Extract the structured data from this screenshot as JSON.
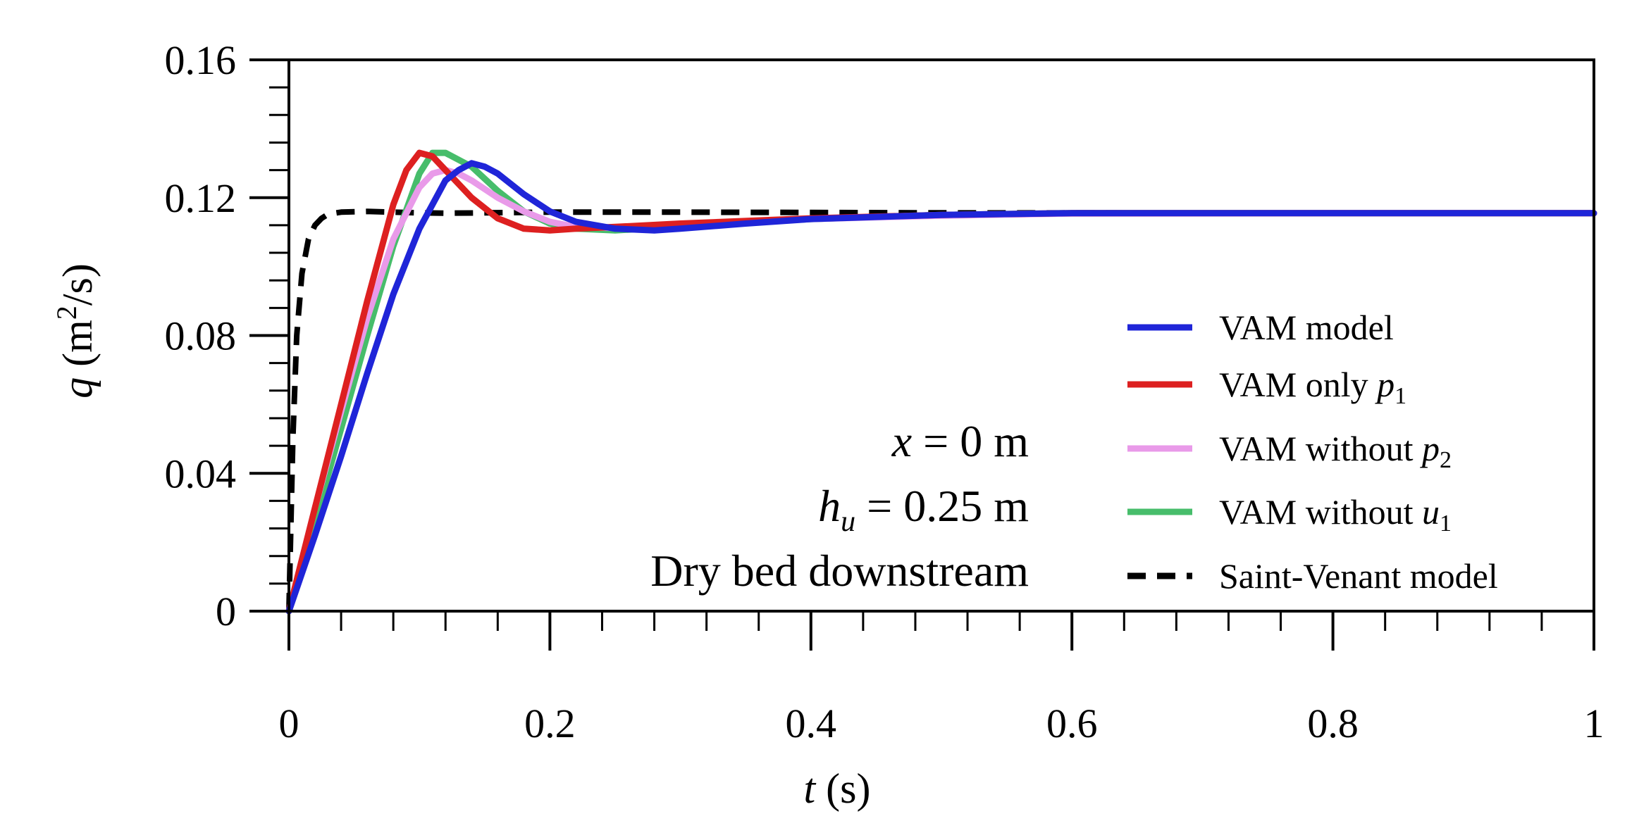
{
  "chart_data": {
    "type": "line",
    "xlabel": {
      "var": "t",
      "unit": "(s)"
    },
    "ylabel": {
      "var": "q",
      "unit_pre": "(m",
      "unit_sup": "2",
      "unit_post": "/s)"
    },
    "xlim": [
      0,
      1
    ],
    "ylim": [
      0,
      0.16
    ],
    "xticks": [
      0,
      0.2,
      0.4,
      0.6,
      0.8,
      1
    ],
    "xtick_labels": [
      "0",
      "0.2",
      "0.4",
      "0.6",
      "0.8",
      "1"
    ],
    "yticks": [
      0,
      0.04,
      0.08,
      0.12,
      0.16
    ],
    "ytick_labels": [
      "0",
      "0.04",
      "0.08",
      "0.12",
      "0.16"
    ],
    "grid": false,
    "legend_position": "bottom-right",
    "annotations": [
      {
        "var": "x",
        "text": " = 0 m"
      },
      {
        "var": "h",
        "sub": "u",
        "text": " = 0.25 m"
      },
      {
        "text": "Dry bed downstream"
      }
    ],
    "series": [
      {
        "name": "Saint-Venant model",
        "label_main": "Saint-Venant model",
        "color": "#000000",
        "dash": true,
        "x": [
          0,
          0.003,
          0.006,
          0.01,
          0.015,
          0.02,
          0.025,
          0.03,
          0.04,
          0.06,
          0.08,
          0.1,
          0.12,
          0.15,
          0.2,
          0.3,
          0.5,
          1.0
        ],
        "y": [
          0,
          0.05,
          0.08,
          0.098,
          0.108,
          0.112,
          0.114,
          0.1152,
          0.1158,
          0.116,
          0.1158,
          0.1156,
          0.1155,
          0.1156,
          0.1158,
          0.1158,
          0.1156,
          0.1155
        ]
      },
      {
        "name": "VAM without u1",
        "label_main": "VAM without ",
        "label_var": "u",
        "label_sub": "1",
        "color": "#47bd6b",
        "dash": false,
        "x": [
          0,
          0.02,
          0.04,
          0.06,
          0.08,
          0.1,
          0.11,
          0.12,
          0.14,
          0.16,
          0.18,
          0.2,
          0.22,
          0.25,
          0.3,
          0.35,
          0.4,
          0.5,
          0.6,
          0.8,
          1.0
        ],
        "y": [
          0,
          0.026,
          0.053,
          0.08,
          0.106,
          0.127,
          0.133,
          0.133,
          0.129,
          0.122,
          0.116,
          0.1125,
          0.111,
          0.1105,
          0.1115,
          0.1128,
          0.1138,
          0.115,
          0.1155,
          0.1155,
          0.1155
        ]
      },
      {
        "name": "VAM without p2",
        "label_main": "VAM without ",
        "label_var": "p",
        "label_sub": "2",
        "color": "#e99ae9",
        "dash": false,
        "x": [
          0,
          0.02,
          0.04,
          0.06,
          0.08,
          0.1,
          0.11,
          0.12,
          0.13,
          0.14,
          0.16,
          0.18,
          0.2,
          0.22,
          0.25,
          0.3,
          0.4,
          0.5,
          0.6,
          0.8,
          1.0
        ],
        "y": [
          0,
          0.03,
          0.058,
          0.085,
          0.108,
          0.123,
          0.127,
          0.128,
          0.127,
          0.125,
          0.12,
          0.116,
          0.113,
          0.1115,
          0.1112,
          0.112,
          0.1138,
          0.1148,
          0.1154,
          0.1155,
          0.1155
        ]
      },
      {
        "name": "VAM only p1",
        "label_main": "VAM only ",
        "label_var": "p",
        "label_sub": "1",
        "color": "#dd2020",
        "dash": false,
        "x": [
          0,
          0.02,
          0.04,
          0.06,
          0.08,
          0.09,
          0.1,
          0.11,
          0.12,
          0.14,
          0.16,
          0.18,
          0.2,
          0.22,
          0.25,
          0.3,
          0.4,
          0.5,
          0.6,
          0.8,
          1.0
        ],
        "y": [
          0,
          0.03,
          0.06,
          0.09,
          0.118,
          0.128,
          0.133,
          0.132,
          0.128,
          0.12,
          0.114,
          0.111,
          0.1105,
          0.111,
          0.1115,
          0.1125,
          0.114,
          0.115,
          0.1155,
          0.1155,
          0.1155
        ]
      },
      {
        "name": "VAM model",
        "label_main": "VAM model",
        "color": "#1f25d8",
        "dash": false,
        "x": [
          0,
          0.02,
          0.04,
          0.06,
          0.08,
          0.1,
          0.12,
          0.13,
          0.14,
          0.15,
          0.16,
          0.18,
          0.2,
          0.22,
          0.25,
          0.28,
          0.3,
          0.35,
          0.4,
          0.5,
          0.6,
          0.8,
          1.0
        ],
        "y": [
          0,
          0.022,
          0.045,
          0.069,
          0.092,
          0.111,
          0.125,
          0.128,
          0.13,
          0.129,
          0.127,
          0.121,
          0.116,
          0.113,
          0.111,
          0.1105,
          0.111,
          0.1125,
          0.1138,
          0.115,
          0.1155,
          0.1155,
          0.1155
        ]
      }
    ],
    "legend_order": [
      "VAM model",
      "VAM only p1",
      "VAM without p2",
      "VAM without u1",
      "Saint-Venant model"
    ]
  }
}
